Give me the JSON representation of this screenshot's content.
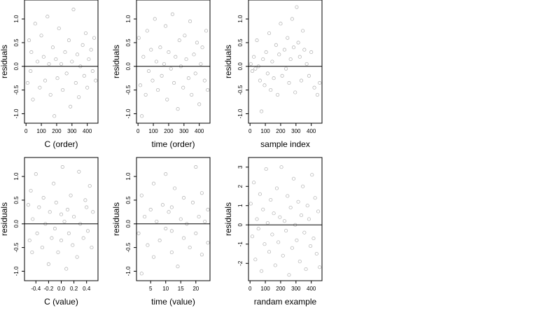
{
  "chart_data": [
    {
      "type": "scatter",
      "xlabel": "C (order)",
      "ylabel": "residuals",
      "xlim": [
        -10,
        470
      ],
      "ylim": [
        -1.2,
        1.4
      ],
      "xticks": [
        0,
        100,
        200,
        300,
        400
      ],
      "xtick_labels": [
        "0",
        "100",
        "200",
        "300",
        "400"
      ],
      "yticks": [
        -1.0,
        -0.5,
        0.0,
        0.5,
        1.0
      ],
      "ytick_labels": [
        "-1.0",
        "-0.5",
        "0.0",
        "0.5",
        "1.0"
      ],
      "hline": 0,
      "grid": false,
      "points": [
        [
          10,
          -0.35
        ],
        [
          20,
          0.55
        ],
        [
          30,
          -0.1
        ],
        [
          35,
          0.3
        ],
        [
          45,
          -0.7
        ],
        [
          60,
          0.9
        ],
        [
          75,
          0.1
        ],
        [
          90,
          -0.45
        ],
        [
          100,
          0.65
        ],
        [
          115,
          0.2
        ],
        [
          125,
          -0.3
        ],
        [
          140,
          1.05
        ],
        [
          150,
          0.05
        ],
        [
          160,
          -0.6
        ],
        [
          175,
          0.4
        ],
        [
          185,
          -1.05
        ],
        [
          195,
          0.15
        ],
        [
          205,
          -0.25
        ],
        [
          215,
          0.8
        ],
        [
          230,
          0.05
        ],
        [
          240,
          -0.5
        ],
        [
          255,
          0.3
        ],
        [
          265,
          -0.15
        ],
        [
          280,
          0.55
        ],
        [
          290,
          -0.85
        ],
        [
          300,
          0.1
        ],
        [
          310,
          1.2
        ],
        [
          325,
          -0.35
        ],
        [
          335,
          0.25
        ],
        [
          345,
          -0.65
        ],
        [
          355,
          0.0
        ],
        [
          370,
          0.45
        ],
        [
          380,
          -0.2
        ],
        [
          390,
          0.7
        ],
        [
          400,
          -0.45
        ],
        [
          410,
          0.15
        ],
        [
          425,
          0.35
        ],
        [
          435,
          -0.1
        ],
        [
          445,
          0.6
        ],
        [
          455,
          -0.3
        ]
      ]
    },
    {
      "type": "scatter",
      "xlabel": "time (order)",
      "ylabel": "residuals",
      "xlim": [
        -10,
        470
      ],
      "ylim": [
        -1.2,
        1.4
      ],
      "xticks": [
        0,
        100,
        200,
        300,
        400
      ],
      "xtick_labels": [
        "0",
        "100",
        "200",
        "300",
        "400"
      ],
      "yticks": [
        -1.0,
        -0.5,
        0.0,
        0.5,
        1.0
      ],
      "ytick_labels": [
        "-1.0",
        "-0.5",
        "0.0",
        "0.5",
        "1.0"
      ],
      "hline": 0,
      "grid": false,
      "points": [
        [
          5,
          0.6
        ],
        [
          15,
          -0.4
        ],
        [
          25,
          -1.05
        ],
        [
          35,
          0.2
        ],
        [
          50,
          -0.6
        ],
        [
          60,
          0.75
        ],
        [
          70,
          -0.1
        ],
        [
          85,
          0.35
        ],
        [
          95,
          -0.3
        ],
        [
          110,
          1.0
        ],
        [
          120,
          0.1
        ],
        [
          130,
          -0.5
        ],
        [
          145,
          0.4
        ],
        [
          155,
          -0.2
        ],
        [
          170,
          0.05
        ],
        [
          180,
          0.85
        ],
        [
          190,
          -0.7
        ],
        [
          200,
          0.3
        ],
        [
          215,
          -0.05
        ],
        [
          225,
          1.1
        ],
        [
          235,
          -0.35
        ],
        [
          245,
          0.2
        ],
        [
          260,
          -0.9
        ],
        [
          270,
          0.55
        ],
        [
          280,
          0.0
        ],
        [
          295,
          -0.45
        ],
        [
          305,
          0.65
        ],
        [
          315,
          0.15
        ],
        [
          330,
          -0.25
        ],
        [
          340,
          0.95
        ],
        [
          350,
          -0.6
        ],
        [
          365,
          0.25
        ],
        [
          375,
          -0.15
        ],
        [
          385,
          0.5
        ],
        [
          400,
          -0.8
        ],
        [
          410,
          0.05
        ],
        [
          420,
          0.4
        ],
        [
          435,
          -0.3
        ],
        [
          445,
          0.75
        ],
        [
          455,
          -0.5
        ]
      ]
    },
    {
      "type": "scatter",
      "xlabel": "sample index",
      "ylabel": "residuals",
      "xlim": [
        -10,
        470
      ],
      "ylim": [
        -1.2,
        1.4
      ],
      "xticks": [
        0,
        100,
        200,
        300,
        400
      ],
      "xtick_labels": [
        "0",
        "100",
        "200",
        "300",
        "400"
      ],
      "yticks": [
        -1.0,
        -0.5,
        0.0,
        0.5,
        1.0
      ],
      "ytick_labels": [
        "-1.0",
        "-0.5",
        "0.0",
        "0.5",
        "1.0"
      ],
      "hline": 0,
      "grid": false,
      "points": [
        [
          5,
          0.05
        ],
        [
          15,
          -0.1
        ],
        [
          25,
          0.2
        ],
        [
          35,
          -0.05
        ],
        [
          45,
          0.55
        ],
        [
          55,
          0.0
        ],
        [
          65,
          -0.3
        ],
        [
          75,
          -0.95
        ],
        [
          85,
          0.15
        ],
        [
          95,
          -0.4
        ],
        [
          105,
          0.3
        ],
        [
          115,
          -0.15
        ],
        [
          125,
          0.7
        ],
        [
          135,
          -0.5
        ],
        [
          145,
          0.1
        ],
        [
          155,
          -0.25
        ],
        [
          170,
          0.45
        ],
        [
          180,
          -0.6
        ],
        [
          190,
          0.25
        ],
        [
          200,
          0.9
        ],
        [
          210,
          -0.2
        ],
        [
          225,
          0.35
        ],
        [
          235,
          -0.05
        ],
        [
          245,
          0.6
        ],
        [
          255,
          -0.35
        ],
        [
          265,
          0.15
        ],
        [
          275,
          1.0
        ],
        [
          285,
          0.4
        ],
        [
          295,
          -0.55
        ],
        [
          305,
          1.25
        ],
        [
          315,
          0.5
        ],
        [
          325,
          0.2
        ],
        [
          335,
          -0.3
        ],
        [
          345,
          0.75
        ],
        [
          355,
          0.35
        ],
        [
          370,
          0.05
        ],
        [
          385,
          -0.2
        ],
        [
          400,
          0.3
        ],
        [
          420,
          -0.45
        ],
        [
          440,
          -0.6
        ],
        [
          455,
          -0.35
        ]
      ]
    },
    {
      "type": "scatter",
      "xlabel": "C (value)",
      "ylabel": "residuals",
      "xlim": [
        -0.58,
        0.58
      ],
      "ylim": [
        -1.2,
        1.4
      ],
      "xticks": [
        -0.4,
        -0.2,
        0.0,
        0.2,
        0.4
      ],
      "xtick_labels": [
        "-0.4",
        "-0.2",
        "0.0",
        "0.2",
        "0.4"
      ],
      "yticks": [
        -1.0,
        -0.5,
        0.0,
        0.5,
        1.0
      ],
      "ytick_labels": [
        "-1.0",
        "-0.5",
        "0.0",
        "0.5",
        "1.0"
      ],
      "hline": 0,
      "grid": false,
      "points": [
        [
          -0.52,
          0.4
        ],
        [
          -0.5,
          -0.35
        ],
        [
          -0.48,
          0.7
        ],
        [
          -0.46,
          -0.6
        ],
        [
          -0.45,
          0.1
        ],
        [
          -0.4,
          1.05
        ],
        [
          -0.38,
          -0.2
        ],
        [
          -0.35,
          0.35
        ],
        [
          -0.3,
          -0.5
        ],
        [
          -0.28,
          0.55
        ],
        [
          -0.25,
          0.0
        ],
        [
          -0.2,
          -0.85
        ],
        [
          -0.18,
          0.25
        ],
        [
          -0.15,
          -0.3
        ],
        [
          -0.12,
          0.85
        ],
        [
          -0.1,
          -0.1
        ],
        [
          -0.08,
          0.45
        ],
        [
          -0.05,
          -0.6
        ],
        [
          0.0,
          0.2
        ],
        [
          0.0,
          -0.35
        ],
        [
          0.02,
          1.2
        ],
        [
          0.05,
          0.05
        ],
        [
          0.08,
          -0.95
        ],
        [
          0.1,
          0.3
        ],
        [
          0.12,
          -0.2
        ],
        [
          0.15,
          0.6
        ],
        [
          0.18,
          -0.45
        ],
        [
          0.2,
          0.15
        ],
        [
          0.25,
          -0.7
        ],
        [
          0.28,
          1.1
        ],
        [
          0.3,
          0.0
        ],
        [
          0.35,
          -0.3
        ],
        [
          0.38,
          0.5
        ],
        [
          0.4,
          0.35
        ],
        [
          0.42,
          -0.15
        ],
        [
          0.45,
          0.8
        ],
        [
          0.48,
          -0.5
        ],
        [
          0.5,
          0.25
        ]
      ]
    },
    {
      "type": "scatter",
      "xlabel": "time (value)",
      "ylabel": "residuals",
      "xlim": [
        0.3,
        24.7
      ],
      "ylim": [
        -1.2,
        1.4
      ],
      "xticks": [
        5,
        10,
        15,
        20
      ],
      "xtick_labels": [
        "5",
        "10",
        "15",
        "20"
      ],
      "yticks": [
        -1.0,
        -0.5,
        0.0,
        0.5,
        1.0
      ],
      "ytick_labels": [
        "-1.0",
        "-0.5",
        "0.0",
        "0.5",
        "1.0"
      ],
      "hline": 0,
      "grid": false,
      "points": [
        [
          1,
          -0.2
        ],
        [
          2,
          0.6
        ],
        [
          2,
          -1.05
        ],
        [
          3,
          0.15
        ],
        [
          4,
          -0.45
        ],
        [
          5,
          0.3
        ],
        [
          6,
          -0.7
        ],
        [
          6,
          0.85
        ],
        [
          7,
          0.05
        ],
        [
          8,
          -0.35
        ],
        [
          9,
          0.4
        ],
        [
          10,
          -0.1
        ],
        [
          10,
          1.05
        ],
        [
          11,
          0.25
        ],
        [
          12,
          -0.6
        ],
        [
          12,
          0.35
        ],
        [
          12,
          -0.15
        ],
        [
          13,
          0.75
        ],
        [
          14,
          -0.9
        ],
        [
          15,
          0.1
        ],
        [
          16,
          -0.3
        ],
        [
          16,
          0.55
        ],
        [
          17,
          0.0
        ],
        [
          18,
          -0.5
        ],
        [
          19,
          0.45
        ],
        [
          20,
          -0.2
        ],
        [
          20,
          1.2
        ],
        [
          21,
          0.15
        ],
        [
          22,
          -0.65
        ],
        [
          22,
          0.65
        ],
        [
          23,
          0.05
        ],
        [
          24,
          -0.4
        ],
        [
          24,
          0.3
        ]
      ]
    },
    {
      "type": "scatter",
      "xlabel": "randam example",
      "ylabel": "residuals",
      "xlim": [
        -10,
        470
      ],
      "ylim": [
        -2.9,
        3.5
      ],
      "xticks": [
        0,
        100,
        200,
        300,
        400
      ],
      "xtick_labels": [
        "0",
        "100",
        "200",
        "300",
        "400"
      ],
      "yticks": [
        -2,
        -1,
        0,
        1,
        2,
        3
      ],
      "ytick_labels": [
        "-2",
        "-1",
        "0",
        "1",
        "2",
        "3"
      ],
      "hline": 0,
      "grid": false,
      "points": [
        [
          5,
          1.1
        ],
        [
          15,
          -0.6
        ],
        [
          25,
          2.2
        ],
        [
          35,
          -1.8
        ],
        [
          45,
          0.3
        ],
        [
          55,
          -0.2
        ],
        [
          65,
          1.6
        ],
        [
          75,
          -2.4
        ],
        [
          85,
          0.8
        ],
        [
          95,
          -1.0
        ],
        [
          105,
          2.9
        ],
        [
          115,
          0.1
        ],
        [
          125,
          -1.4
        ],
        [
          135,
          1.3
        ],
        [
          145,
          -0.5
        ],
        [
          155,
          0.6
        ],
        [
          165,
          -2.1
        ],
        [
          175,
          1.9
        ],
        [
          185,
          -0.9
        ],
        [
          195,
          0.4
        ],
        [
          205,
          3.0
        ],
        [
          215,
          -1.6
        ],
        [
          225,
          0.2
        ],
        [
          235,
          -0.3
        ],
        [
          245,
          1.5
        ],
        [
          255,
          -2.6
        ],
        [
          265,
          0.9
        ],
        [
          275,
          -1.2
        ],
        [
          285,
          2.4
        ],
        [
          295,
          0.0
        ],
        [
          305,
          -0.8
        ],
        [
          315,
          1.2
        ],
        [
          325,
          -1.9
        ],
        [
          335,
          0.5
        ],
        [
          345,
          2.0
        ],
        [
          355,
          -0.4
        ],
        [
          365,
          -2.3
        ],
        [
          375,
          1.0
        ],
        [
          385,
          0.3
        ],
        [
          395,
          -1.1
        ],
        [
          405,
          2.6
        ],
        [
          415,
          -0.7
        ],
        [
          425,
          1.4
        ],
        [
          435,
          -1.5
        ],
        [
          445,
          0.7
        ],
        [
          455,
          -2.2
        ]
      ]
    }
  ]
}
